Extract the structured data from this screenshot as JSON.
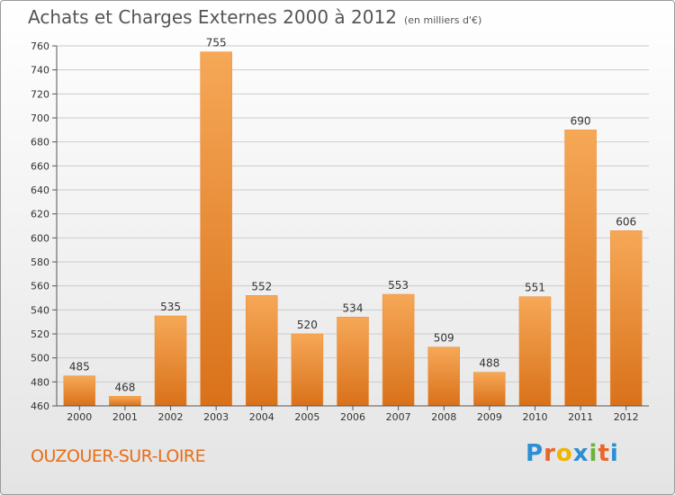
{
  "title": "Achats et Charges Externes 2000 à 2012",
  "subtitle": "(en milliers d'€)",
  "town": "OUZOUER-SUR-LOIRE",
  "brand": {
    "letters": [
      "P",
      "r",
      "o",
      "x",
      "i",
      "t",
      "i"
    ],
    "colors": [
      "#2a8fd4",
      "#e8662a",
      "#f0b400",
      "#2a8fd4",
      "#6cb33f",
      "#e8662a",
      "#2a8fd4"
    ]
  },
  "colors": {
    "bar": "#ee8a2e",
    "bar_light": "#f6a857",
    "bar_dark": "#d9711a",
    "grid": "#cccccc",
    "town": "#e86d16"
  },
  "chart_data": {
    "type": "bar",
    "categories": [
      "2000",
      "2001",
      "2002",
      "2003",
      "2004",
      "2005",
      "2006",
      "2007",
      "2008",
      "2009",
      "2010",
      "2011",
      "2012"
    ],
    "values": [
      485,
      468,
      535,
      755,
      552,
      520,
      534,
      553,
      509,
      488,
      551,
      690,
      606
    ],
    "title": "Achats et Charges Externes 2000 à 2012",
    "subtitle": "(en milliers d'€)",
    "xlabel": "",
    "ylabel": "",
    "ylim": [
      460,
      760
    ],
    "yticks": [
      460,
      480,
      500,
      520,
      540,
      560,
      580,
      600,
      620,
      640,
      660,
      680,
      700,
      720,
      740,
      760
    ],
    "grid": true
  }
}
